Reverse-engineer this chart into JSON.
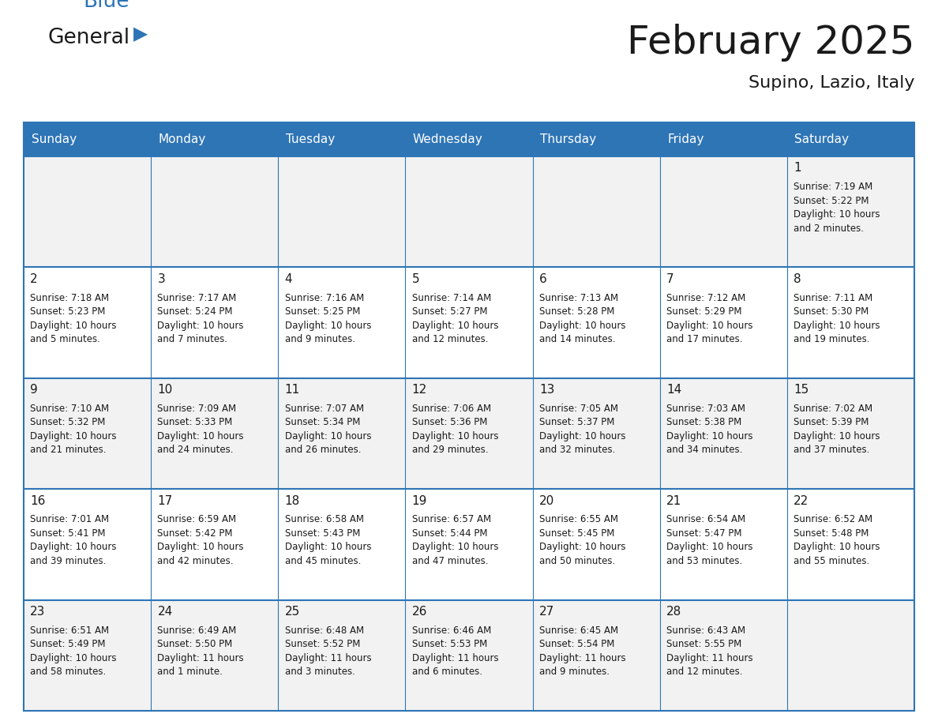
{
  "title": "February 2025",
  "subtitle": "Supino, Lazio, Italy",
  "header_bg": "#2E75B6",
  "header_text": "#FFFFFF",
  "cell_bg_odd": "#F2F2F2",
  "cell_bg_even": "#FFFFFF",
  "border_color": "#2E75B6",
  "text_color": "#1a1a1a",
  "day_names": [
    "Sunday",
    "Monday",
    "Tuesday",
    "Wednesday",
    "Thursday",
    "Friday",
    "Saturday"
  ],
  "days": [
    {
      "date": 1,
      "row": 0,
      "col": 6,
      "sunrise": "7:19 AM",
      "sunset": "5:22 PM",
      "daylight": "10 hours\nand 2 minutes."
    },
    {
      "date": 2,
      "row": 1,
      "col": 0,
      "sunrise": "7:18 AM",
      "sunset": "5:23 PM",
      "daylight": "10 hours\nand 5 minutes."
    },
    {
      "date": 3,
      "row": 1,
      "col": 1,
      "sunrise": "7:17 AM",
      "sunset": "5:24 PM",
      "daylight": "10 hours\nand 7 minutes."
    },
    {
      "date": 4,
      "row": 1,
      "col": 2,
      "sunrise": "7:16 AM",
      "sunset": "5:25 PM",
      "daylight": "10 hours\nand 9 minutes."
    },
    {
      "date": 5,
      "row": 1,
      "col": 3,
      "sunrise": "7:14 AM",
      "sunset": "5:27 PM",
      "daylight": "10 hours\nand 12 minutes."
    },
    {
      "date": 6,
      "row": 1,
      "col": 4,
      "sunrise": "7:13 AM",
      "sunset": "5:28 PM",
      "daylight": "10 hours\nand 14 minutes."
    },
    {
      "date": 7,
      "row": 1,
      "col": 5,
      "sunrise": "7:12 AM",
      "sunset": "5:29 PM",
      "daylight": "10 hours\nand 17 minutes."
    },
    {
      "date": 8,
      "row": 1,
      "col": 6,
      "sunrise": "7:11 AM",
      "sunset": "5:30 PM",
      "daylight": "10 hours\nand 19 minutes."
    },
    {
      "date": 9,
      "row": 2,
      "col": 0,
      "sunrise": "7:10 AM",
      "sunset": "5:32 PM",
      "daylight": "10 hours\nand 21 minutes."
    },
    {
      "date": 10,
      "row": 2,
      "col": 1,
      "sunrise": "7:09 AM",
      "sunset": "5:33 PM",
      "daylight": "10 hours\nand 24 minutes."
    },
    {
      "date": 11,
      "row": 2,
      "col": 2,
      "sunrise": "7:07 AM",
      "sunset": "5:34 PM",
      "daylight": "10 hours\nand 26 minutes."
    },
    {
      "date": 12,
      "row": 2,
      "col": 3,
      "sunrise": "7:06 AM",
      "sunset": "5:36 PM",
      "daylight": "10 hours\nand 29 minutes."
    },
    {
      "date": 13,
      "row": 2,
      "col": 4,
      "sunrise": "7:05 AM",
      "sunset": "5:37 PM",
      "daylight": "10 hours\nand 32 minutes."
    },
    {
      "date": 14,
      "row": 2,
      "col": 5,
      "sunrise": "7:03 AM",
      "sunset": "5:38 PM",
      "daylight": "10 hours\nand 34 minutes."
    },
    {
      "date": 15,
      "row": 2,
      "col": 6,
      "sunrise": "7:02 AM",
      "sunset": "5:39 PM",
      "daylight": "10 hours\nand 37 minutes."
    },
    {
      "date": 16,
      "row": 3,
      "col": 0,
      "sunrise": "7:01 AM",
      "sunset": "5:41 PM",
      "daylight": "10 hours\nand 39 minutes."
    },
    {
      "date": 17,
      "row": 3,
      "col": 1,
      "sunrise": "6:59 AM",
      "sunset": "5:42 PM",
      "daylight": "10 hours\nand 42 minutes."
    },
    {
      "date": 18,
      "row": 3,
      "col": 2,
      "sunrise": "6:58 AM",
      "sunset": "5:43 PM",
      "daylight": "10 hours\nand 45 minutes."
    },
    {
      "date": 19,
      "row": 3,
      "col": 3,
      "sunrise": "6:57 AM",
      "sunset": "5:44 PM",
      "daylight": "10 hours\nand 47 minutes."
    },
    {
      "date": 20,
      "row": 3,
      "col": 4,
      "sunrise": "6:55 AM",
      "sunset": "5:45 PM",
      "daylight": "10 hours\nand 50 minutes."
    },
    {
      "date": 21,
      "row": 3,
      "col": 5,
      "sunrise": "6:54 AM",
      "sunset": "5:47 PM",
      "daylight": "10 hours\nand 53 minutes."
    },
    {
      "date": 22,
      "row": 3,
      "col": 6,
      "sunrise": "6:52 AM",
      "sunset": "5:48 PM",
      "daylight": "10 hours\nand 55 minutes."
    },
    {
      "date": 23,
      "row": 4,
      "col": 0,
      "sunrise": "6:51 AM",
      "sunset": "5:49 PM",
      "daylight": "10 hours\nand 58 minutes."
    },
    {
      "date": 24,
      "row": 4,
      "col": 1,
      "sunrise": "6:49 AM",
      "sunset": "5:50 PM",
      "daylight": "11 hours\nand 1 minute."
    },
    {
      "date": 25,
      "row": 4,
      "col": 2,
      "sunrise": "6:48 AM",
      "sunset": "5:52 PM",
      "daylight": "11 hours\nand 3 minutes."
    },
    {
      "date": 26,
      "row": 4,
      "col": 3,
      "sunrise": "6:46 AM",
      "sunset": "5:53 PM",
      "daylight": "11 hours\nand 6 minutes."
    },
    {
      "date": 27,
      "row": 4,
      "col": 4,
      "sunrise": "6:45 AM",
      "sunset": "5:54 PM",
      "daylight": "11 hours\nand 9 minutes."
    },
    {
      "date": 28,
      "row": 4,
      "col": 5,
      "sunrise": "6:43 AM",
      "sunset": "5:55 PM",
      "daylight": "11 hours\nand 12 minutes."
    }
  ],
  "num_rows": 5,
  "logo_color1": "#1a1a1a",
  "logo_color2": "#2E75B6",
  "title_fontsize": 36,
  "subtitle_fontsize": 16,
  "header_fontsize": 11,
  "date_fontsize": 11,
  "info_fontsize": 8.5
}
